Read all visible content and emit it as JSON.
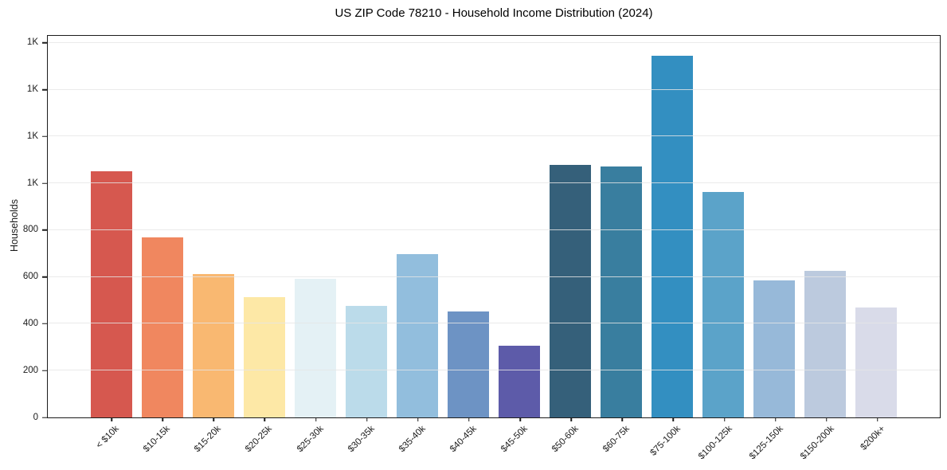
{
  "chart": {
    "title": "US ZIP Code 78210 - Household Income Distribution (2024)",
    "ylabel": "Households",
    "background_color": "#ffffff",
    "axis_color": "#1c1c1c",
    "grid_color": "#e5e5e5",
    "text_color": "#1a1a1a"
  },
  "chart_data": {
    "type": "bar",
    "title": "US ZIP Code 78210 - Household Income Distribution (2024)",
    "xlabel": "",
    "ylabel": "Households",
    "categories": [
      "< $10k",
      "$10-15k",
      "$15-20k",
      "$20-25k",
      "$25-30k",
      "$30-35k",
      "$35-40k",
      "$40-45k",
      "$45-50k",
      "$50-60k",
      "$60-75k",
      "$75-100k",
      "$100-125k",
      "$125-150k",
      "$150-200k",
      "$200k+"
    ],
    "values": [
      1050,
      770,
      612,
      514,
      591,
      477,
      698,
      452,
      305,
      1078,
      1072,
      1545,
      962,
      584,
      627,
      469
    ],
    "bar_colors": [
      "#d6584f",
      "#f0875f",
      "#f9b871",
      "#fde8a6",
      "#e4f1f5",
      "#bbdbea",
      "#92bedd",
      "#6d93c4",
      "#5d5ba9",
      "#35607a",
      "#397e9f",
      "#338fc1",
      "#5ba3c9",
      "#97b9d9",
      "#bccade",
      "#d9dbe9"
    ],
    "ylim": [
      0,
      1630
    ],
    "yticks": [
      {
        "value": 0,
        "label": "0"
      },
      {
        "value": 200,
        "label": "200"
      },
      {
        "value": 400,
        "label": "400"
      },
      {
        "value": 600,
        "label": "600"
      },
      {
        "value": 800,
        "label": "800"
      },
      {
        "value": 1000,
        "label": "1K"
      },
      {
        "value": 1200,
        "label": "1K"
      },
      {
        "value": 1400,
        "label": "1K"
      },
      {
        "value": 1600,
        "label": "1K"
      }
    ],
    "grid": "horizontal",
    "legend": "none",
    "xtick_rotation_deg": 45
  }
}
